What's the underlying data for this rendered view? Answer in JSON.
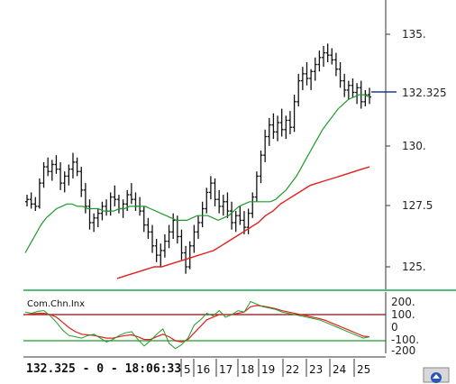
{
  "chart_data": [
    {
      "type": "bar",
      "subtype": "ohlc",
      "price_axis_ticks": [
        "135.",
        "132.325",
        "130.",
        "127.5",
        "125."
      ],
      "ylim": [
        124.3,
        135.6
      ],
      "current_price_label": "132.325",
      "current_price": 132.325,
      "date_labels": [
        "5",
        "16",
        "17",
        "18",
        "19",
        "22",
        "23",
        "24",
        "25"
      ],
      "ohlc": [
        [
          127.8,
          128.1,
          127.6,
          127.9
        ],
        [
          127.9,
          128.2,
          127.5,
          127.7
        ],
        [
          127.7,
          128.0,
          127.4,
          127.6
        ],
        [
          127.6,
          128.8,
          127.5,
          128.6
        ],
        [
          128.6,
          129.5,
          128.4,
          129.3
        ],
        [
          129.3,
          129.7,
          128.9,
          129.1
        ],
        [
          129.1,
          129.6,
          128.7,
          129.4
        ],
        [
          129.4,
          129.8,
          129.0,
          129.2
        ],
        [
          129.2,
          129.5,
          128.3,
          128.6
        ],
        [
          128.6,
          129.1,
          128.2,
          128.9
        ],
        [
          128.9,
          129.4,
          128.5,
          129.2
        ],
        [
          129.2,
          129.9,
          128.8,
          129.5
        ],
        [
          129.5,
          129.7,
          128.9,
          129.1
        ],
        [
          129.1,
          129.3,
          128.0,
          128.3
        ],
        [
          128.3,
          128.6,
          127.3,
          127.6
        ],
        [
          127.6,
          127.9,
          126.6,
          126.9
        ],
        [
          126.9,
          127.3,
          126.5,
          127.1
        ],
        [
          127.1,
          127.5,
          126.7,
          127.3
        ],
        [
          127.3,
          127.8,
          127.0,
          127.6
        ],
        [
          127.6,
          127.9,
          127.2,
          127.4
        ],
        [
          127.4,
          128.2,
          127.2,
          128.0
        ],
        [
          128.0,
          128.5,
          127.6,
          127.9
        ],
        [
          127.9,
          128.1,
          127.3,
          127.5
        ],
        [
          127.5,
          127.9,
          127.1,
          127.7
        ],
        [
          127.7,
          128.3,
          127.4,
          128.1
        ],
        [
          128.1,
          128.6,
          127.7,
          127.9
        ],
        [
          127.9,
          128.2,
          127.4,
          127.6
        ],
        [
          127.6,
          128.0,
          127.2,
          127.4
        ],
        [
          127.4,
          127.6,
          126.5,
          126.8
        ],
        [
          126.8,
          127.1,
          126.2,
          126.5
        ],
        [
          126.5,
          126.8,
          125.6,
          125.9
        ],
        [
          125.9,
          126.2,
          125.2,
          125.5
        ],
        [
          125.5,
          126.0,
          125.0,
          125.7
        ],
        [
          125.7,
          126.4,
          125.4,
          126.1
        ],
        [
          126.1,
          126.8,
          125.8,
          126.5
        ],
        [
          126.5,
          127.3,
          126.2,
          127.0
        ],
        [
          127.0,
          127.2,
          126.0,
          126.3
        ],
        [
          126.3,
          126.6,
          125.3,
          125.6
        ],
        [
          125.6,
          125.9,
          124.7,
          125.0
        ],
        [
          125.0,
          126.1,
          124.9,
          125.9
        ],
        [
          125.9,
          126.8,
          125.6,
          126.5
        ],
        [
          126.5,
          127.2,
          126.2,
          126.9
        ],
        [
          126.9,
          127.8,
          126.7,
          127.5
        ],
        [
          127.5,
          128.4,
          127.3,
          128.2
        ],
        [
          128.2,
          128.9,
          127.9,
          128.6
        ],
        [
          128.6,
          128.8,
          127.6,
          127.9
        ],
        [
          127.9,
          128.3,
          127.3,
          127.6
        ],
        [
          127.6,
          128.1,
          127.2,
          127.8
        ],
        [
          127.8,
          128.2,
          127.1,
          127.4
        ],
        [
          127.4,
          127.8,
          126.6,
          126.9
        ],
        [
          126.9,
          127.4,
          126.5,
          127.2
        ],
        [
          127.2,
          127.6,
          126.8,
          127.0
        ],
        [
          127.0,
          127.4,
          126.4,
          126.7
        ],
        [
          126.7,
          127.5,
          126.4,
          127.3
        ],
        [
          127.3,
          128.2,
          127.1,
          128.0
        ],
        [
          128.0,
          129.1,
          127.8,
          128.9
        ],
        [
          128.9,
          130.0,
          128.6,
          129.8
        ],
        [
          129.8,
          130.9,
          129.5,
          130.6
        ],
        [
          130.6,
          131.4,
          130.2,
          131.1
        ],
        [
          131.1,
          131.6,
          130.5,
          130.8
        ],
        [
          130.8,
          131.5,
          130.4,
          131.2
        ],
        [
          131.2,
          131.8,
          130.6,
          130.9
        ],
        [
          130.9,
          131.5,
          130.5,
          131.3
        ],
        [
          131.3,
          131.7,
          130.7,
          131.0
        ],
        [
          131.0,
          132.4,
          130.8,
          132.1
        ],
        [
          132.1,
          133.3,
          131.9,
          133.0
        ],
        [
          133.0,
          133.6,
          132.6,
          133.3
        ],
        [
          133.3,
          133.8,
          132.8,
          133.1
        ],
        [
          133.1,
          133.5,
          132.6,
          133.4
        ],
        [
          133.4,
          134.0,
          133.0,
          133.7
        ],
        [
          133.7,
          134.3,
          133.4,
          134.0
        ],
        [
          134.0,
          134.5,
          133.6,
          134.2
        ],
        [
          134.2,
          134.6,
          133.8,
          134.1
        ],
        [
          134.1,
          134.4,
          133.7,
          133.9
        ],
        [
          133.9,
          134.2,
          133.2,
          133.5
        ],
        [
          133.5,
          133.8,
          132.7,
          133.0
        ],
        [
          133.0,
          133.3,
          132.3,
          132.6
        ],
        [
          132.6,
          133.0,
          132.2,
          132.8
        ],
        [
          132.8,
          133.1,
          132.3,
          132.5
        ],
        [
          132.5,
          132.9,
          132.0,
          132.7
        ],
        [
          132.7,
          133.0,
          131.8,
          132.1
        ],
        [
          132.1,
          132.6,
          131.9,
          132.4
        ],
        [
          132.4,
          132.7,
          132.0,
          132.3
        ]
      ],
      "ma_short": [
        125.6,
        126.0,
        126.4,
        126.8,
        127.1,
        127.3,
        127.5,
        127.6,
        127.7,
        127.7,
        127.6,
        127.6,
        127.5,
        127.5,
        127.5,
        127.4,
        127.4,
        127.4,
        127.5,
        127.5,
        127.6,
        127.6,
        127.6,
        127.6,
        127.5,
        127.4,
        127.3,
        127.2,
        127.1,
        127.0,
        127.0,
        127.0,
        127.1,
        127.2,
        127.2,
        127.2,
        127.1,
        127.0,
        127.1,
        127.2,
        127.4,
        127.6,
        127.7,
        127.8,
        127.8,
        127.8,
        127.8,
        127.8,
        127.9,
        128.1,
        128.3,
        128.6,
        128.9,
        129.3,
        129.7,
        130.1,
        130.5,
        130.9,
        131.2,
        131.5,
        131.8,
        132.0,
        132.2,
        132.3,
        132.4,
        132.4,
        132.3
      ],
      "ma_long": [
        124.5,
        124.6,
        124.7,
        124.8,
        124.9,
        125.0,
        125.0,
        125.1,
        125.2,
        125.3,
        125.4,
        125.5,
        125.6,
        125.7,
        125.9,
        126.1,
        126.3,
        126.5,
        126.7,
        126.9,
        127.2,
        127.4,
        127.7,
        127.9,
        128.1,
        128.3,
        128.5,
        128.6,
        128.7,
        128.8,
        128.9,
        129.0,
        129.1,
        129.2,
        129.3
      ]
    },
    {
      "type": "line",
      "title": "Com.Chn.Inx",
      "ticks": [
        "200.",
        "100.",
        "0",
        "-100.",
        "-200"
      ],
      "ylim": [
        -230,
        230
      ],
      "reference_lines": [
        100,
        -100
      ],
      "series": [
        {
          "values": [
            120,
            110,
            125,
            130,
            90,
            40,
            -20,
            -60,
            -70,
            -80,
            -60,
            -50,
            -80,
            -110,
            -90,
            -60,
            -40,
            -30,
            -90,
            -140,
            -100,
            -50,
            -10,
            -120,
            -160,
            -130,
            -80,
            20,
            60,
            110,
            90,
            130,
            80,
            100,
            130,
            120,
            200,
            180,
            160,
            150,
            140,
            120,
            110,
            100,
            90,
            80,
            70,
            60,
            40,
            20,
            0,
            -20,
            -40,
            -60,
            -80,
            -70
          ]
        },
        {
          "values": [
            100,
            105,
            110,
            110,
            100,
            80,
            40,
            0,
            -30,
            -50,
            -55,
            -60,
            -70,
            -80,
            -80,
            -70,
            -60,
            -55,
            -70,
            -90,
            -90,
            -70,
            -50,
            -70,
            -100,
            -110,
            -90,
            -40,
            10,
            60,
            80,
            100,
            100,
            100,
            110,
            120,
            160,
            170,
            165,
            155,
            145,
            130,
            120,
            110,
            100,
            90,
            80,
            70,
            55,
            35,
            15,
            -5,
            -25,
            -45,
            -65,
            -70
          ]
        }
      ]
    }
  ],
  "status_bar": {
    "text": "132.325 - 0 - 18:06:33"
  },
  "colors": {
    "price_bars": "#111111",
    "ma_short": "#1f9a2a",
    "ma_long": "#e0201c",
    "price_marker": "#1d3f8f",
    "separator": "#4fbf7a",
    "ref_line_upper": "#8b0f0f",
    "ref_line_lower": "#1f9a2a"
  },
  "icons": {
    "corner_button": "navigator-icon"
  }
}
